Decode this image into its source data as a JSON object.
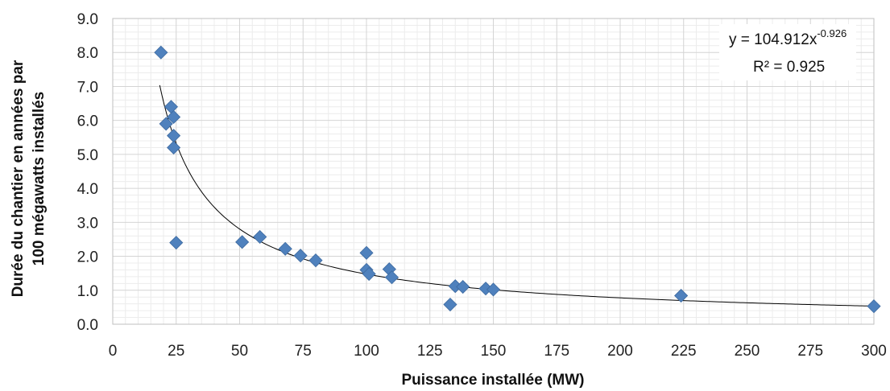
{
  "chart_data": {
    "type": "scatter",
    "xlabel": "Puissance installée (MW)",
    "ylabel": [
      "Durée du chantier en années  par",
      "100 mégawatts installés"
    ],
    "xlim": [
      0,
      300
    ],
    "ylim": [
      0,
      9
    ],
    "x_ticks": [
      "0",
      "25",
      "50",
      "75",
      "100",
      "125",
      "150",
      "175",
      "200",
      "225",
      "250",
      "275",
      "300"
    ],
    "y_ticks": [
      "0.0",
      "1.0",
      "2.0",
      "3.0",
      "4.0",
      "5.0",
      "6.0",
      "7.0",
      "8.0",
      "9.0"
    ],
    "grid": true,
    "series": [
      {
        "marker": "diamond",
        "color": "#4F81BD",
        "points": [
          {
            "x": 19,
            "y": 8.0
          },
          {
            "x": 21,
            "y": 5.9
          },
          {
            "x": 23,
            "y": 6.4
          },
          {
            "x": 24,
            "y": 6.1
          },
          {
            "x": 24,
            "y": 5.55
          },
          {
            "x": 24,
            "y": 5.2
          },
          {
            "x": 25,
            "y": 2.4
          },
          {
            "x": 51,
            "y": 2.42
          },
          {
            "x": 58,
            "y": 2.57
          },
          {
            "x": 68,
            "y": 2.22
          },
          {
            "x": 74,
            "y": 2.02
          },
          {
            "x": 80,
            "y": 1.88
          },
          {
            "x": 100,
            "y": 2.1
          },
          {
            "x": 100,
            "y": 1.6
          },
          {
            "x": 101,
            "y": 1.48
          },
          {
            "x": 109,
            "y": 1.62
          },
          {
            "x": 110,
            "y": 1.38
          },
          {
            "x": 133,
            "y": 0.58
          },
          {
            "x": 135,
            "y": 1.12
          },
          {
            "x": 138,
            "y": 1.1
          },
          {
            "x": 147,
            "y": 1.05
          },
          {
            "x": 150,
            "y": 1.02
          },
          {
            "x": 224,
            "y": 0.84
          },
          {
            "x": 300,
            "y": 0.53
          }
        ]
      }
    ],
    "trendline": {
      "type": "power",
      "a": 104.912,
      "b": -0.926,
      "x_range": [
        18.5,
        300
      ],
      "color": "#000000"
    },
    "annotation": {
      "eq_prefix": "y = 104.912x",
      "eq_exponent": "-0.926",
      "r2": "R² = 0.925"
    }
  }
}
